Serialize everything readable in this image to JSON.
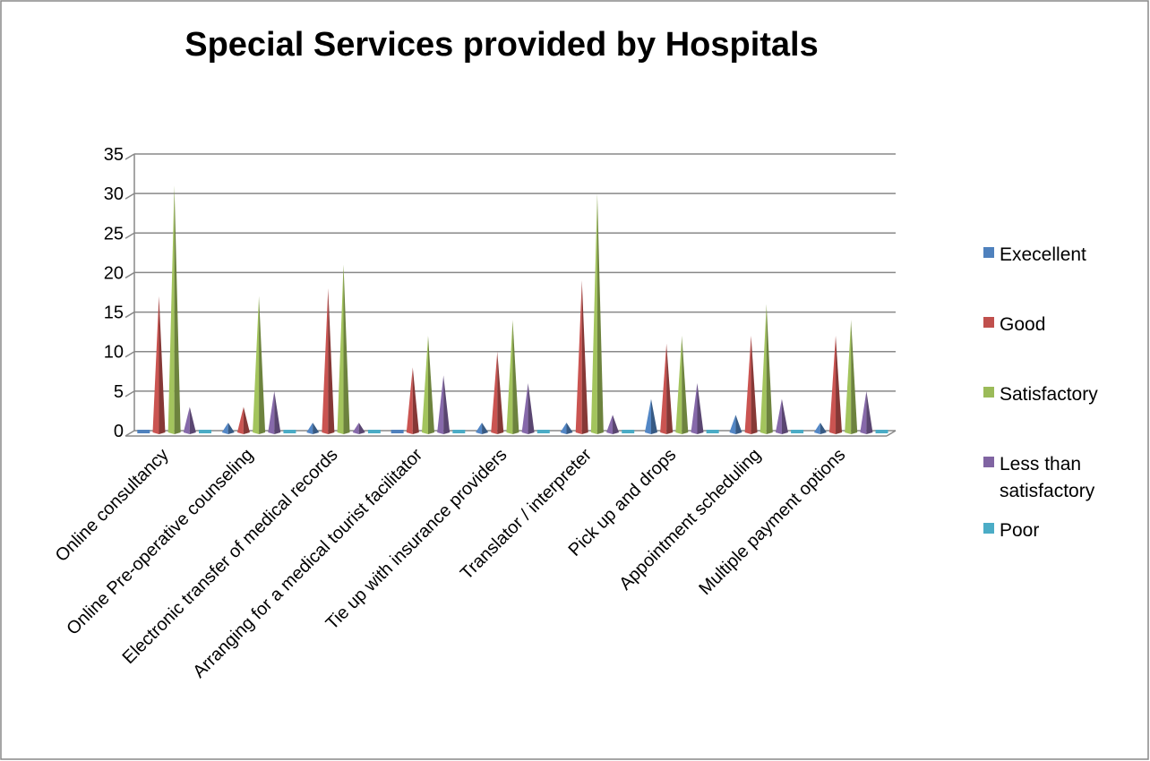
{
  "chart_data": {
    "type": "bar3d-cone",
    "title": "Special Services provided by Hospitals",
    "categories": [
      "Online consultancy",
      "Online Pre-operative counseling",
      "Electronic transfer of medical records",
      "Arranging for a medical tourist facilitator",
      "Tie up with insurance providers",
      "Translator / interpreter",
      "Pick up and drops",
      "Appointment scheduling",
      "Multiple payment options"
    ],
    "series": [
      {
        "name": "Execellent",
        "color": "#4f81bd",
        "values": [
          0,
          1,
          1,
          0,
          1,
          1,
          4,
          2,
          1
        ]
      },
      {
        "name": "Good",
        "color": "#c0504d",
        "values": [
          17,
          3,
          18,
          8,
          10,
          19,
          11,
          12,
          12
        ]
      },
      {
        "name": "Satisfactory",
        "color": "#9bbb59",
        "values": [
          31,
          17,
          21,
          12,
          14,
          30,
          12,
          16,
          14
        ]
      },
      {
        "name": "Less than satisfactory",
        "color": "#8064a2",
        "values": [
          3,
          5,
          1,
          7,
          6,
          2,
          6,
          4,
          5
        ]
      },
      {
        "name": "Poor",
        "color": "#4bacc6",
        "values": [
          0,
          0,
          0,
          0,
          0,
          0,
          0,
          0,
          0
        ]
      }
    ],
    "ylim": [
      0,
      35
    ],
    "yticks": [
      0,
      5,
      10,
      15,
      20,
      25,
      30,
      35
    ],
    "grid": true,
    "legend": "right"
  }
}
